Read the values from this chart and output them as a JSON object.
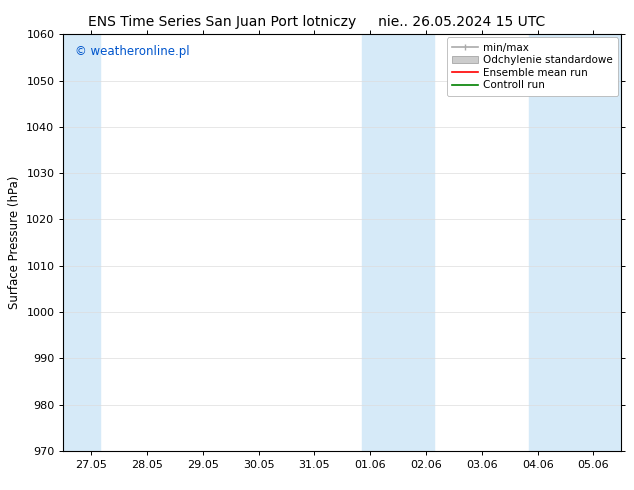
{
  "title_left": "ENS Time Series San Juan Port lotniczy",
  "title_right": "nie.. 26.05.2024 15 UTC",
  "ylabel": "Surface Pressure (hPa)",
  "ylim": [
    970,
    1060
  ],
  "yticks": [
    970,
    980,
    990,
    1000,
    1010,
    1020,
    1030,
    1040,
    1050,
    1060
  ],
  "x_tick_labels": [
    "27.05",
    "28.05",
    "29.05",
    "30.05",
    "31.05",
    "01.06",
    "02.06",
    "03.06",
    "04.06",
    "05.06"
  ],
  "x_tick_positions": [
    0,
    1,
    2,
    3,
    4,
    5,
    6,
    7,
    8,
    9
  ],
  "xlim": [
    -0.5,
    9.5
  ],
  "shaded_bands": [
    {
      "xmin": -0.5,
      "xmax": 0.15,
      "color": "#d6eaf8"
    },
    {
      "xmin": 4.85,
      "xmax": 5.5,
      "color": "#d6eaf8"
    },
    {
      "xmin": 5.5,
      "xmax": 6.15,
      "color": "#d6eaf8"
    },
    {
      "xmin": 7.85,
      "xmax": 8.5,
      "color": "#d6eaf8"
    },
    {
      "xmin": 8.5,
      "xmax": 9.5,
      "color": "#d6eaf8"
    }
  ],
  "watermark_text": "© weatheronline.pl",
  "watermark_color": "#0055cc",
  "legend_entries": [
    {
      "label": "min/max",
      "color": "#aaaaaa",
      "lw": 1.2,
      "style": "errorbar"
    },
    {
      "label": "Odchylenie standardowe",
      "color": "#cccccc",
      "lw": 5,
      "style": "band"
    },
    {
      "label": "Ensemble mean run",
      "color": "red",
      "lw": 1.2,
      "style": "line"
    },
    {
      "label": "Controll run",
      "color": "green",
      "lw": 1.2,
      "style": "line"
    }
  ],
  "bg_color": "#ffffff",
  "grid_color": "#dddddd",
  "title_fontsize": 10,
  "label_fontsize": 8.5,
  "tick_fontsize": 8,
  "legend_fontsize": 7.5
}
